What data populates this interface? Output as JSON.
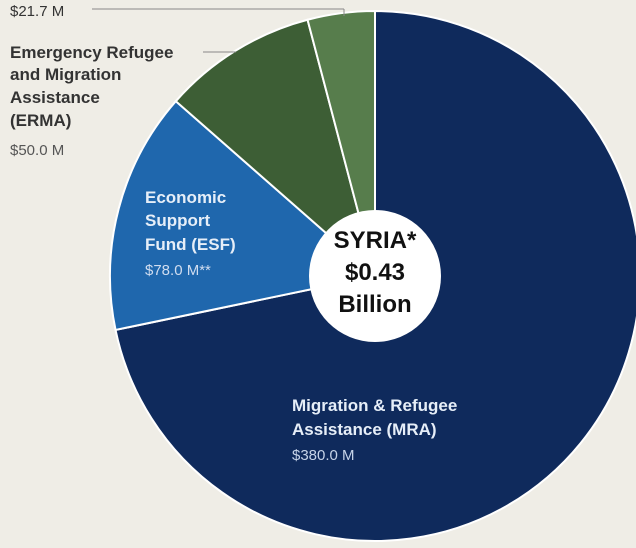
{
  "chart_data": {
    "type": "pie",
    "center_label": [
      "SYRIA*",
      "$0.43",
      "Billion"
    ],
    "slices": [
      {
        "name": [
          "Migration & Refugee",
          "Assistance (MRA)"
        ],
        "value_label": "$380.0 M",
        "value": 380.0,
        "color": "#0f2a5c"
      },
      {
        "name": [
          "Economic",
          "Support",
          "Fund (ESF)"
        ],
        "value_label": "$78.0 M**",
        "value": 78.0,
        "color": "#1f67ad"
      },
      {
        "name": [
          "Emergency Refugee",
          "and Migration",
          "Assistance",
          "(ERMA)"
        ],
        "value_label": "$50.0 M",
        "value": 50.0,
        "color": "#3d5e35"
      },
      {
        "name": [],
        "value_label": "$21.7 M",
        "value": 21.7,
        "color": "#577d4c"
      }
    ]
  }
}
